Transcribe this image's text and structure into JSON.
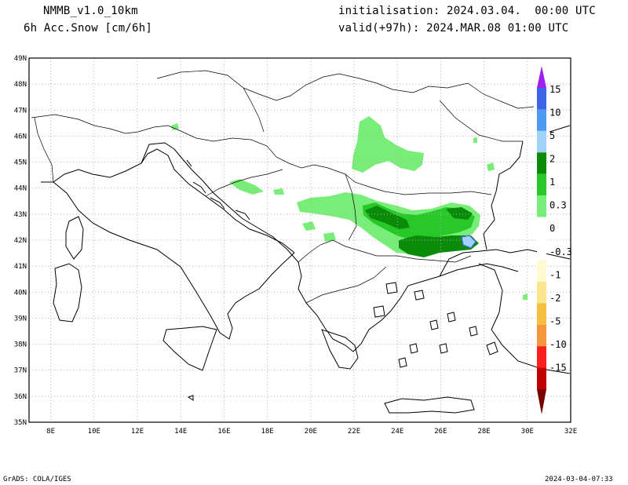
{
  "header": {
    "model": "NMMB_v1.0_10km",
    "field": "6h Acc.Snow [cm/6h]",
    "init": "initialisation: 2024.03.04.  00:00 UTC",
    "valid": "valid(+97h): 2024.MAR.08 01:00 UTC"
  },
  "map": {
    "lon_range": [
      7,
      32
    ],
    "lat_range": [
      35,
      49
    ],
    "lon_labels": [
      "8E",
      "10E",
      "12E",
      "14E",
      "16E",
      "18E",
      "20E",
      "22E",
      "24E",
      "26E",
      "28E",
      "30E",
      "32E"
    ],
    "lat_labels": [
      "35N",
      "36N",
      "37N",
      "38N",
      "39N",
      "40N",
      "41N",
      "42N",
      "43N",
      "44N",
      "45N",
      "46N",
      "47N",
      "48N",
      "49N"
    ],
    "gridlines": true
  },
  "colorbar": {
    "labels": [
      "15",
      "10",
      "5",
      "2",
      "1",
      "0.3",
      "0",
      "-0.3",
      "-1",
      "-2",
      "-5",
      "-10",
      "-15"
    ],
    "colors": {
      "purple": "#a020f0",
      "blue": "#3c64e6",
      "mid_blue": "#4d9bf0",
      "light_blue": "#a0d2fa",
      "green_dark": "#0a8c0a",
      "green_mid": "#28c828",
      "green_light": "#78ee78",
      "white": "#ffffff",
      "cream": "#fffad2",
      "yellow": "#fae68c",
      "orange_light": "#f5c040",
      "orange": "#f5963c",
      "red": "#fa1e1e",
      "dark_red": "#c00000",
      "maroon": "#780000"
    }
  },
  "footer": {
    "left": "GrADS: COLA/IGES",
    "right": "2024-03-04-07:33"
  }
}
